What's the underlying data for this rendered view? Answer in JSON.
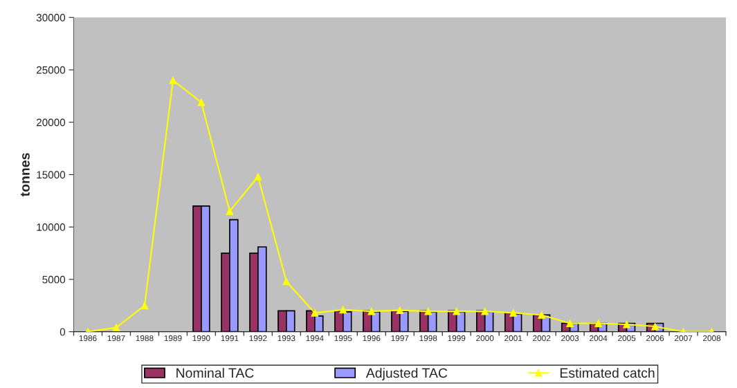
{
  "chart_data": {
    "type": "bar",
    "ylabel": "tonnes",
    "categories": [
      "1986",
      "1987",
      "1988",
      "1989",
      "1990",
      "1991",
      "1992",
      "1993",
      "1994",
      "1995",
      "1996",
      "1997",
      "1998",
      "1999",
      "2000",
      "2001",
      "2002",
      "2003",
      "2004",
      "2005",
      "2006",
      "2007",
      "2008"
    ],
    "series": [
      {
        "name": "Nominal TAC",
        "color": "#993366",
        "values": [
          null,
          null,
          null,
          null,
          12000,
          7500,
          7500,
          2000,
          2000,
          2000,
          2000,
          2000,
          2000,
          2000,
          2000,
          1800,
          1600,
          800,
          800,
          800,
          800,
          null,
          null
        ]
      },
      {
        "name": "Adjusted TAC",
        "color": "#9999ff",
        "values": [
          null,
          null,
          null,
          null,
          12000,
          10700,
          8100,
          2000,
          1500,
          1900,
          1900,
          1950,
          1900,
          1900,
          1900,
          1700,
          1600,
          800,
          800,
          800,
          800,
          null,
          null
        ]
      },
      {
        "name": "Estimated catch",
        "type": "line",
        "color": "#ffff00",
        "marker": "triangle",
        "values": [
          0,
          400,
          2500,
          24000,
          21900,
          11500,
          14800,
          4800,
          1800,
          2100,
          1950,
          2050,
          1950,
          1950,
          1950,
          1800,
          1600,
          800,
          800,
          700,
          500,
          0,
          0
        ]
      }
    ],
    "ylim": [
      0,
      30000
    ],
    "yticks": [
      0,
      5000,
      10000,
      15000,
      20000,
      25000,
      30000
    ],
    "grid": false,
    "legend": "bottom"
  }
}
